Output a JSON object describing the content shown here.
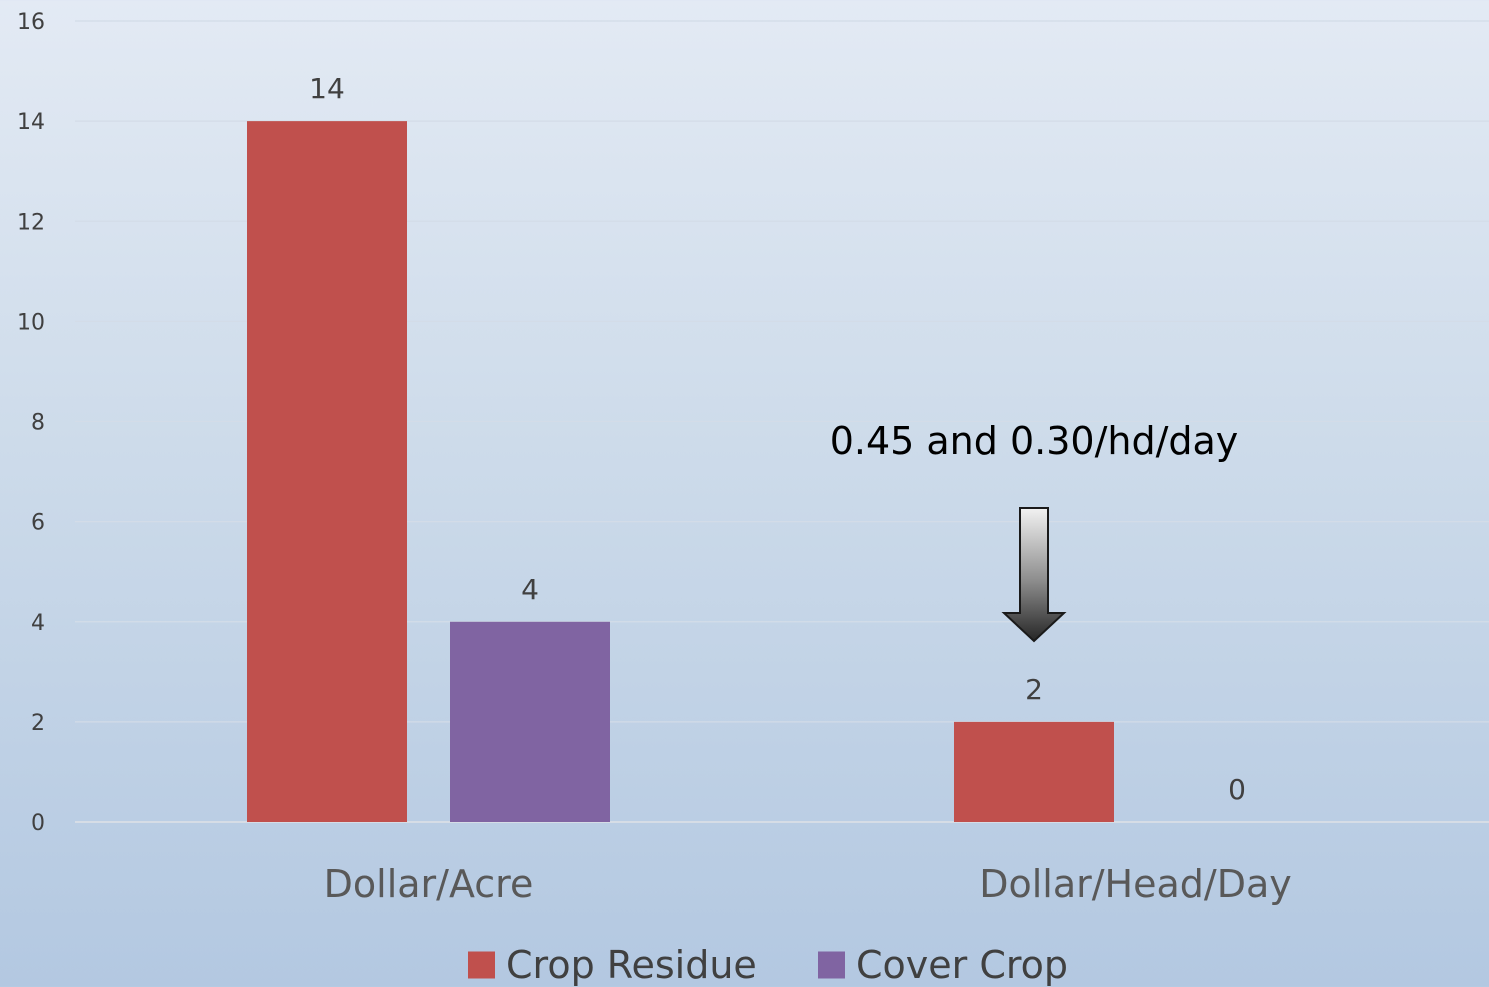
{
  "chart_data": {
    "type": "bar",
    "categories": [
      "Dollar/Acre",
      "Dollar/Head/Day"
    ],
    "series": [
      {
        "name": "Crop Residue",
        "values": [
          14,
          2
        ],
        "color": "#c0504d"
      },
      {
        "name": "Cover Crop",
        "values": [
          4,
          0
        ],
        "color": "#8064a2"
      }
    ],
    "ylim": [
      0,
      16
    ],
    "yticks": [
      0,
      2,
      4,
      6,
      8,
      10,
      12,
      14,
      16
    ],
    "grid": true,
    "legend": "bottom",
    "annotation": {
      "text": "0.45 and 0.30/hd/day",
      "target_category": "Dollar/Head/Day",
      "arrow": "down"
    },
    "title": "",
    "xlabel": "",
    "ylabel": ""
  }
}
